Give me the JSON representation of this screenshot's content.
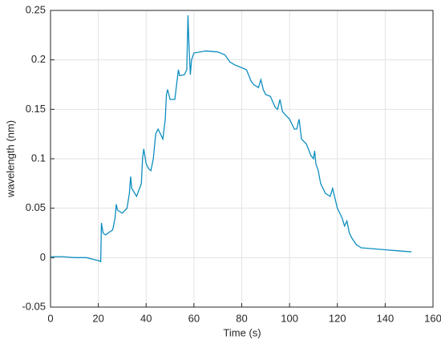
{
  "chart_data": {
    "type": "line",
    "xlabel": "Time (s)",
    "ylabel": "wavelength (nm)",
    "x": [
      0,
      5,
      10,
      15,
      20,
      21,
      21.3,
      22,
      23,
      26,
      27,
      27.5,
      28,
      30,
      32,
      33,
      33.5,
      34,
      36,
      38,
      38.5,
      39,
      40,
      41,
      42,
      43,
      44,
      45,
      46,
      47,
      48,
      48.5,
      49,
      50,
      52,
      53,
      53.5,
      54,
      56,
      57,
      57.5,
      58,
      58.5,
      59,
      60,
      65,
      70,
      73,
      75,
      77,
      80,
      82,
      84,
      85,
      87,
      88,
      89,
      90,
      92,
      94,
      95,
      96,
      97,
      98,
      100,
      102,
      103,
      104,
      105,
      107,
      109,
      110,
      110.5,
      111,
      112,
      113,
      115,
      117,
      118,
      119,
      120,
      122,
      123,
      124,
      125,
      126,
      128,
      130,
      135,
      140,
      145,
      150,
      151
    ],
    "series": [
      {
        "name": "wavelength",
        "color": "#0e8ec0",
        "values": [
          0.001,
          0.001,
          0.0,
          0.0,
          -0.003,
          -0.004,
          0.035,
          0.025,
          0.023,
          0.028,
          0.04,
          0.054,
          0.048,
          0.045,
          0.05,
          0.065,
          0.082,
          0.07,
          0.062,
          0.075,
          0.1,
          0.11,
          0.095,
          0.09,
          0.088,
          0.1,
          0.125,
          0.13,
          0.125,
          0.12,
          0.14,
          0.165,
          0.17,
          0.16,
          0.16,
          0.18,
          0.19,
          0.184,
          0.185,
          0.19,
          0.245,
          0.21,
          0.185,
          0.2,
          0.207,
          0.209,
          0.208,
          0.205,
          0.198,
          0.195,
          0.192,
          0.19,
          0.178,
          0.175,
          0.172,
          0.18,
          0.17,
          0.165,
          0.163,
          0.152,
          0.15,
          0.16,
          0.148,
          0.145,
          0.14,
          0.13,
          0.13,
          0.14,
          0.12,
          0.115,
          0.103,
          0.1,
          0.108,
          0.095,
          0.088,
          0.075,
          0.065,
          0.062,
          0.07,
          0.06,
          0.05,
          0.04,
          0.032,
          0.037,
          0.025,
          0.02,
          0.013,
          0.01,
          0.009,
          0.008,
          0.007,
          0.006,
          0.006
        ]
      }
    ],
    "xlim": [
      0,
      160
    ],
    "xticks": [
      0,
      20,
      40,
      60,
      80,
      100,
      120,
      140,
      160
    ],
    "ylim": [
      -0.05,
      0.25
    ],
    "yticks": [
      -0.05,
      0,
      0.05,
      0.1,
      0.15,
      0.2,
      0.25
    ],
    "grid": true
  }
}
